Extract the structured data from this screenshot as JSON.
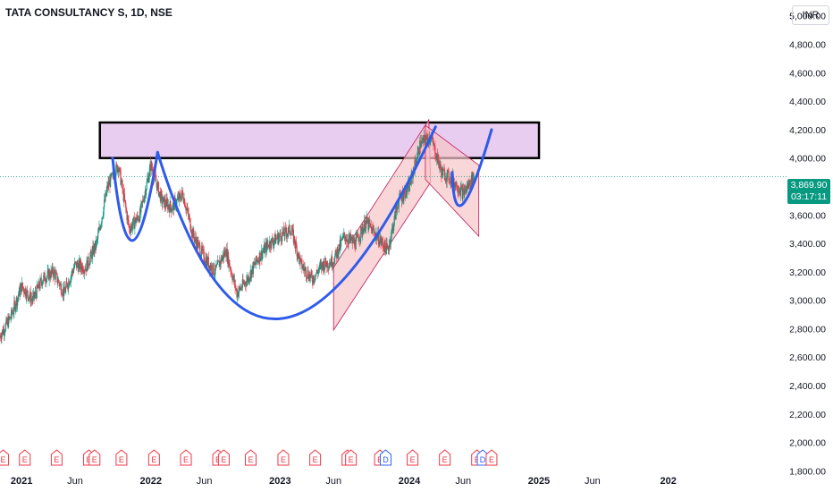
{
  "header": {
    "title": "TATA CONSULTANCY S, 1D, NSE"
  },
  "currency": "INR",
  "last_price": {
    "value": "3,869.90",
    "countdown": "03:17:11"
  },
  "colors": {
    "up": "#089981",
    "down": "#f23645",
    "curve": "#2f5bea",
    "zone_fill": "#e8cdf0",
    "channel": "#f6c4c8"
  },
  "chart_data": {
    "type": "candlestick",
    "x_labels": [
      "2021",
      "Jun",
      "2022",
      "Jun",
      "2023",
      "Jun",
      "2024",
      "Jun",
      "2025",
      "Jun",
      "202"
    ],
    "y_ticks": [
      "5,000.00",
      "4,800.00",
      "4,600.00",
      "4,400.00",
      "4,200.00",
      "4,000.00",
      "3,600.00",
      "3,400.00",
      "3,200.00",
      "3,000.00",
      "2,800.00",
      "2,600.00",
      "2,400.00",
      "2,200.00",
      "2,000.00",
      "1,800.00"
    ],
    "y_tick_values": [
      5000,
      4800,
      4600,
      4400,
      4200,
      4000,
      3600,
      3400,
      3200,
      3000,
      2800,
      2600,
      2400,
      2200,
      2000,
      1800
    ],
    "y_range": [
      1790,
      5080
    ],
    "x_range": [
      "2020-11",
      "2026-12"
    ],
    "price_path": [
      [
        "2020-11",
        2750
      ],
      [
        "2020-12",
        2880
      ],
      [
        "2021-01",
        3100
      ],
      [
        "2021-02",
        3000
      ],
      [
        "2021-03",
        3150
      ],
      [
        "2021-04",
        3200
      ],
      [
        "2021-05",
        3050
      ],
      [
        "2021-06",
        3250
      ],
      [
        "2021-07",
        3230
      ],
      [
        "2021-08",
        3400
      ],
      [
        "2021-09",
        3800
      ],
      [
        "2021-10",
        3950
      ],
      [
        "2021-11",
        3500
      ],
      [
        "2021-12",
        3600
      ],
      [
        "2022-01",
        3950
      ],
      [
        "2022-02",
        3700
      ],
      [
        "2022-03",
        3650
      ],
      [
        "2022-04",
        3750
      ],
      [
        "2022-05",
        3450
      ],
      [
        "2022-06",
        3300
      ],
      [
        "2022-07",
        3200
      ],
      [
        "2022-08",
        3350
      ],
      [
        "2022-09",
        3050
      ],
      [
        "2022-10",
        3150
      ],
      [
        "2022-11",
        3300
      ],
      [
        "2022-12",
        3400
      ],
      [
        "2023-01",
        3450
      ],
      [
        "2023-02",
        3500
      ],
      [
        "2023-03",
        3250
      ],
      [
        "2023-04",
        3150
      ],
      [
        "2023-05",
        3250
      ],
      [
        "2023-06",
        3280
      ],
      [
        "2023-07",
        3450
      ],
      [
        "2023-08",
        3400
      ],
      [
        "2023-09",
        3550
      ],
      [
        "2023-10",
        3450
      ],
      [
        "2023-11",
        3350
      ],
      [
        "2023-12",
        3700
      ],
      [
        "2024-01",
        3800
      ],
      [
        "2024-02",
        4100
      ],
      [
        "2024-03",
        4150
      ],
      [
        "2024-04",
        3900
      ],
      [
        "2024-05",
        3850
      ],
      [
        "2024-06",
        3750
      ],
      [
        "2024-07",
        3869.9
      ]
    ],
    "curves": [
      {
        "name": "",
        "points": [
          [
            "2021-09-15",
            4000
          ],
          [
            "2021-11-10",
            3420
          ],
          [
            "2022-01-20",
            4040
          ]
        ]
      },
      {
        "name": "",
        "points": [
          [
            "2022-01-20",
            4040
          ],
          [
            "2023-01-01",
            2870
          ],
          [
            "2024-03-15",
            4220
          ]
        ]
      },
      {
        "name": "",
        "points": [
          [
            "2024-05-01",
            3900
          ],
          [
            "2024-06-01",
            3680
          ],
          [
            "2024-08-20",
            4200
          ]
        ]
      }
    ],
    "resistance_zone": {
      "x": [
        "2021-08-10",
        "2025-01-01"
      ],
      "y": [
        4000,
        4250
      ]
    },
    "channels": [
      {
        "polygon": [
          [
            "2023-06-01",
            3230
          ],
          [
            "2024-02-25",
            4270
          ],
          [
            "2024-03-01",
            3830
          ],
          [
            "2023-06-01",
            2790
          ]
        ]
      },
      {
        "polygon": [
          [
            "2024-02-15",
            4230
          ],
          [
            "2024-07-15",
            3950
          ],
          [
            "2024-07-15",
            3450
          ],
          [
            "2024-02-15",
            3850
          ]
        ]
      }
    ],
    "event_markers": [
      "E",
      "E",
      "E",
      "E",
      "E",
      "E",
      "E",
      "E",
      "E",
      "E",
      "E",
      "E",
      "E",
      "E",
      "E",
      "E",
      "D",
      "E",
      "E",
      "E",
      "D",
      "E"
    ],
    "event_dates": [
      "2020-11-10",
      "2021-01-10",
      "2021-04-10",
      "2021-07-10",
      "2021-07-26",
      "2021-10-10",
      "2022-01-10",
      "2022-04-10",
      "2022-07-10",
      "2022-07-26",
      "2022-10-10",
      "2023-01-10",
      "2023-04-10",
      "2023-07-10",
      "2023-07-20",
      "2023-10-10",
      "2023-10-26",
      "2024-01-10",
      "2024-04-10",
      "2024-07-10",
      "2024-07-26",
      "2024-08-20"
    ]
  }
}
